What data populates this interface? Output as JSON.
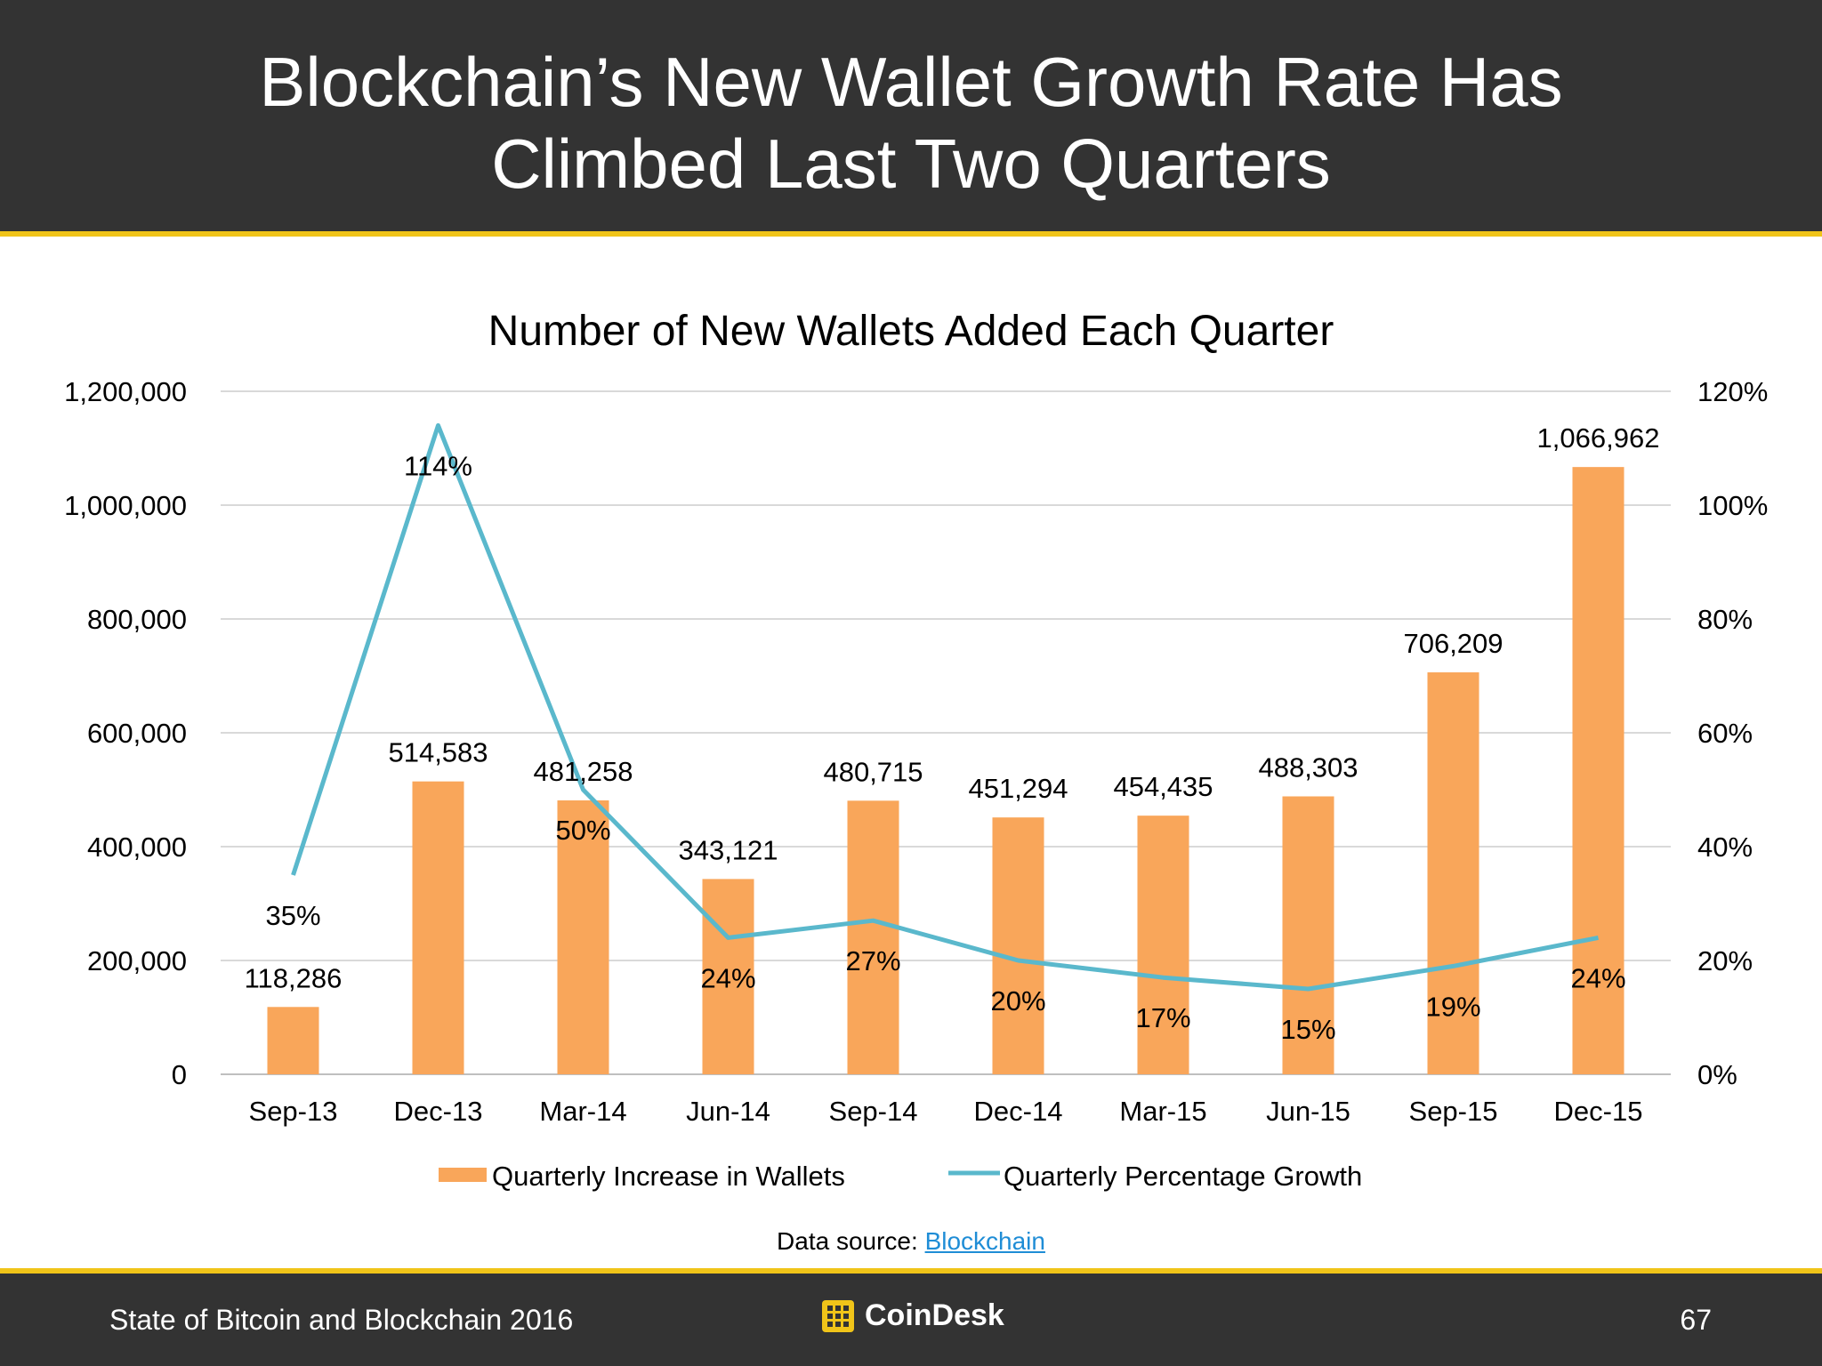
{
  "header": {
    "title_line1": "Blockchain’s New Wallet Growth Rate Has",
    "title_line2": "Climbed Last Two Quarters"
  },
  "chart_data": {
    "type": "bar",
    "title": "Number of New Wallets Added Each Quarter",
    "categories": [
      "Sep-13",
      "Dec-13",
      "Mar-14",
      "Jun-14",
      "Sep-14",
      "Dec-14",
      "Mar-15",
      "Jun-15",
      "Sep-15",
      "Dec-15"
    ],
    "series": [
      {
        "name": "Quarterly Increase in Wallets",
        "type": "bar",
        "axis": "left",
        "color": "#f9a65a",
        "values": [
          118286,
          514583,
          481258,
          343121,
          480715,
          451294,
          454435,
          488303,
          706209,
          1066962
        ],
        "labels": [
          "118,286",
          "514,583",
          "481,258",
          "343,121",
          "480,715",
          "451,294",
          "454,435",
          "488,303",
          "706,209",
          "1,066,962"
        ]
      },
      {
        "name": "Quarterly Percentage Growth",
        "type": "line",
        "axis": "right",
        "color": "#5ab8cc",
        "values": [
          35,
          114,
          50,
          24,
          27,
          20,
          17,
          15,
          19,
          24
        ],
        "labels": [
          "35%",
          "114%",
          "50%",
          "24%",
          "27%",
          "20%",
          "17%",
          "15%",
          "19%",
          "24%"
        ]
      }
    ],
    "y_left": {
      "min": 0,
      "max": 1200000,
      "ticks": [
        "0",
        "200,000",
        "400,000",
        "600,000",
        "800,000",
        "1,000,000",
        "1,200,000"
      ]
    },
    "y_right": {
      "min": 0,
      "max": 120,
      "ticks": [
        "0%",
        "20%",
        "40%",
        "60%",
        "80%",
        "100%",
        "120%"
      ]
    },
    "grid": true,
    "legend_position": "bottom"
  },
  "source": {
    "prefix": "Data source: ",
    "link_text": "Blockchain"
  },
  "footer": {
    "left": "State of Bitcoin and Blockchain 2016",
    "brand": "CoinDesk",
    "page": "67"
  }
}
